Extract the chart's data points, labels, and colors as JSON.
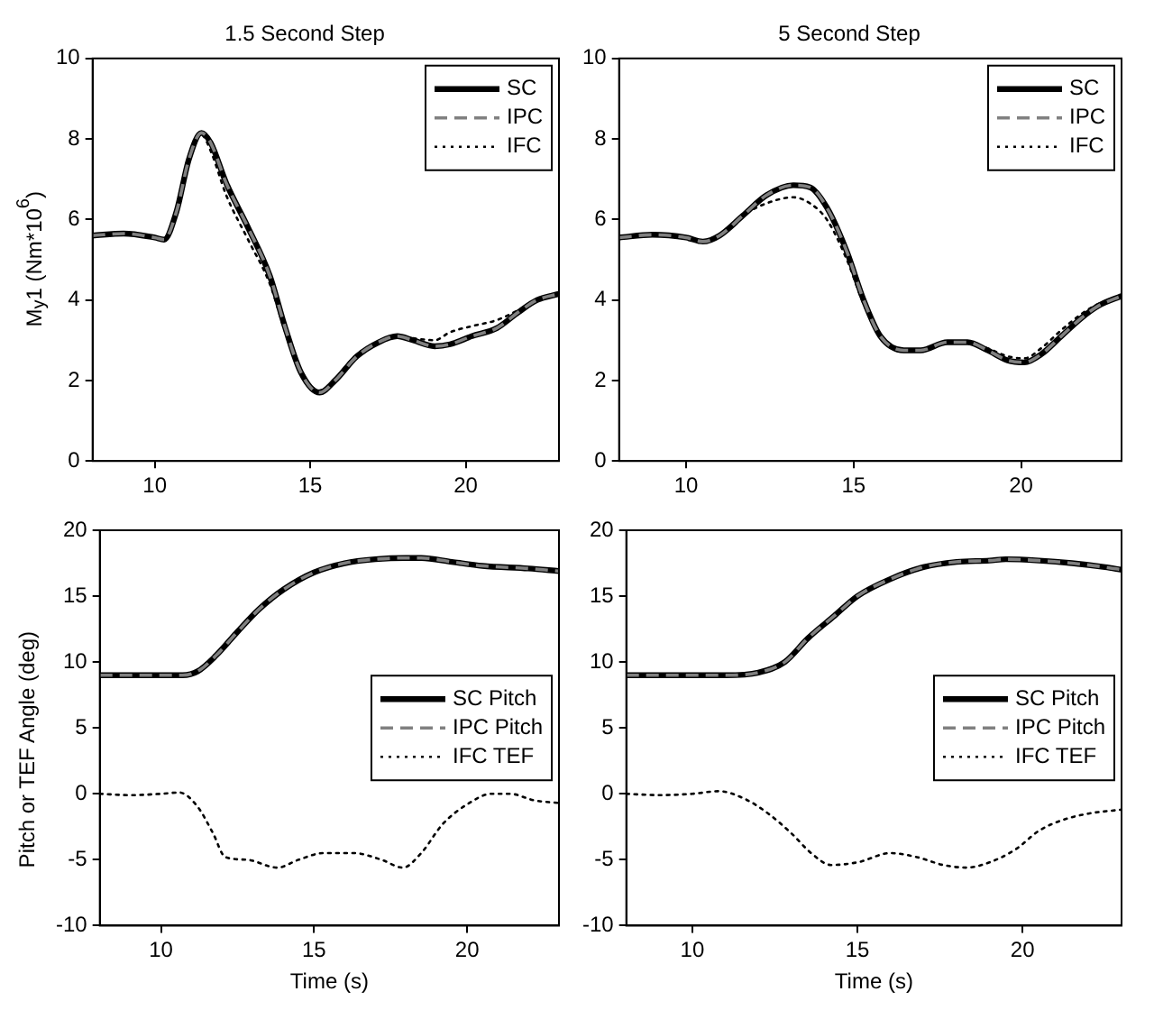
{
  "chart_data": [
    {
      "type": "line",
      "title": "1.5 Second Step",
      "ylabel": "M$_{y}$1 (Nm*10$^{6}$)",
      "xlim": [
        8,
        23
      ],
      "ylim": [
        0,
        10
      ],
      "xticks": [
        10,
        15,
        20
      ],
      "yticks": [
        0,
        2,
        4,
        6,
        8,
        10
      ],
      "grid": false,
      "legend": "top right",
      "marker": "none",
      "series": [
        {
          "name": "SC",
          "color": "#000000",
          "line_style": "solid",
          "x": [
            8,
            9,
            10,
            10.3,
            10.7,
            11.1,
            11.5,
            11.8,
            12.3,
            13,
            13.7,
            14.2,
            14.7,
            15.3,
            15.8,
            16.5,
            17.2,
            17.8,
            18.3,
            19,
            19.5,
            20.2,
            21,
            21.7,
            22.3,
            23
          ],
          "values": [
            5.6,
            5.65,
            5.55,
            5.5,
            6.2,
            7.5,
            8.15,
            7.9,
            6.9,
            5.8,
            4.6,
            3.3,
            2.2,
            1.7,
            2.0,
            2.6,
            2.95,
            3.1,
            3.0,
            2.85,
            2.9,
            3.1,
            3.3,
            3.7,
            4.0,
            4.15
          ]
        },
        {
          "name": "IPC",
          "color": "#808080",
          "line_style": "dashed",
          "x": [
            8,
            9,
            10,
            10.3,
            10.7,
            11.1,
            11.5,
            11.8,
            12.3,
            13,
            13.7,
            14.2,
            14.7,
            15.3,
            15.8,
            16.5,
            17.2,
            17.8,
            18.3,
            19,
            19.5,
            20.2,
            21,
            21.7,
            22.3,
            23
          ],
          "values": [
            5.6,
            5.65,
            5.55,
            5.5,
            6.2,
            7.5,
            8.15,
            7.9,
            6.9,
            5.8,
            4.6,
            3.3,
            2.2,
            1.7,
            2.0,
            2.6,
            2.95,
            3.1,
            3.0,
            2.85,
            2.9,
            3.1,
            3.3,
            3.7,
            4.0,
            4.15
          ]
        },
        {
          "name": "IFC",
          "color": "#000000",
          "line_style": "dotted",
          "x": [
            8,
            9,
            10,
            10.3,
            10.7,
            11.1,
            11.5,
            11.8,
            12.3,
            13,
            13.7,
            14.2,
            14.7,
            15.3,
            15.8,
            16.5,
            17.2,
            17.8,
            18.3,
            19,
            19.5,
            20.2,
            21,
            21.7,
            22.3,
            23
          ],
          "values": [
            5.6,
            5.65,
            5.55,
            5.5,
            6.2,
            7.5,
            8.1,
            7.7,
            6.6,
            5.5,
            4.4,
            3.2,
            2.2,
            1.75,
            2.05,
            2.65,
            2.95,
            3.1,
            3.05,
            3.0,
            3.2,
            3.35,
            3.5,
            3.75,
            4.0,
            4.15
          ]
        }
      ]
    },
    {
      "type": "line",
      "title": "5 Second Step",
      "xlim": [
        8,
        23
      ],
      "ylim": [
        0,
        10
      ],
      "xticks": [
        10,
        15,
        20
      ],
      "yticks": [
        0,
        2,
        4,
        6,
        8,
        10
      ],
      "grid": false,
      "legend": "top right",
      "marker": "none",
      "series": [
        {
          "name": "SC",
          "color": "#000000",
          "line_style": "solid",
          "x": [
            8,
            9,
            10,
            10.5,
            11,
            11.7,
            12.4,
            13.2,
            13.7,
            14.2,
            14.8,
            15.3,
            15.8,
            16.5,
            17,
            17.8,
            18.4,
            19,
            19.6,
            20.1,
            20.6,
            21.2,
            21.8,
            22.3,
            23
          ],
          "values": [
            5.55,
            5.62,
            5.55,
            5.45,
            5.6,
            6.1,
            6.6,
            6.85,
            6.8,
            6.3,
            5.2,
            4.0,
            3.1,
            2.75,
            2.75,
            2.95,
            2.95,
            2.75,
            2.5,
            2.45,
            2.65,
            3.1,
            3.55,
            3.85,
            4.1
          ]
        },
        {
          "name": "IPC",
          "color": "#808080",
          "line_style": "dashed",
          "x": [
            8,
            9,
            10,
            10.5,
            11,
            11.7,
            12.4,
            13.2,
            13.7,
            14.2,
            14.8,
            15.3,
            15.8,
            16.5,
            17,
            17.8,
            18.4,
            19,
            19.6,
            20.1,
            20.6,
            21.2,
            21.8,
            22.3,
            23
          ],
          "values": [
            5.55,
            5.62,
            5.55,
            5.45,
            5.6,
            6.1,
            6.6,
            6.85,
            6.8,
            6.3,
            5.2,
            4.0,
            3.1,
            2.75,
            2.75,
            2.95,
            2.95,
            2.75,
            2.5,
            2.45,
            2.65,
            3.1,
            3.55,
            3.85,
            4.1
          ]
        },
        {
          "name": "IFC",
          "color": "#000000",
          "line_style": "dotted",
          "x": [
            8,
            9,
            10,
            10.5,
            11,
            11.7,
            12.4,
            13.2,
            13.7,
            14.2,
            14.8,
            15.3,
            15.8,
            16.5,
            17,
            17.8,
            18.4,
            19,
            19.6,
            20.1,
            20.6,
            21.2,
            21.8,
            22.3,
            23
          ],
          "values": [
            5.55,
            5.62,
            5.55,
            5.45,
            5.6,
            6.1,
            6.4,
            6.55,
            6.4,
            6.0,
            5.0,
            3.9,
            3.1,
            2.75,
            2.75,
            2.95,
            2.95,
            2.8,
            2.6,
            2.55,
            2.8,
            3.25,
            3.65,
            3.9,
            4.1
          ]
        }
      ]
    },
    {
      "type": "line",
      "xlabel": "Time (s)",
      "ylabel": "Pitch or TEF Angle (deg)",
      "xlim": [
        8,
        23
      ],
      "ylim": [
        -10,
        20
      ],
      "xticks": [
        10,
        15,
        20
      ],
      "yticks": [
        -10,
        -5,
        0,
        5,
        10,
        15,
        20
      ],
      "grid": false,
      "legend": "right",
      "marker": "none",
      "series": [
        {
          "name": "SC Pitch",
          "color": "#000000",
          "line_style": "solid",
          "x": [
            8,
            9,
            10,
            10.7,
            11.2,
            11.8,
            12.5,
            13.2,
            14,
            15,
            16,
            17,
            18,
            18.5,
            19.5,
            20.5,
            22,
            23
          ],
          "values": [
            9.0,
            9.0,
            9.0,
            9.0,
            9.3,
            10.5,
            12.3,
            14.0,
            15.5,
            16.8,
            17.5,
            17.8,
            17.9,
            17.9,
            17.6,
            17.3,
            17.1,
            16.9
          ]
        },
        {
          "name": "IPC Pitch",
          "color": "#808080",
          "line_style": "dashed",
          "x": [
            8,
            9,
            10,
            10.7,
            11.2,
            11.8,
            12.5,
            13.2,
            14,
            15,
            16,
            17,
            18,
            18.5,
            19.5,
            20.5,
            22,
            23
          ],
          "values": [
            9.0,
            9.0,
            9.0,
            9.0,
            9.3,
            10.5,
            12.3,
            14.0,
            15.5,
            16.8,
            17.5,
            17.8,
            17.9,
            17.9,
            17.6,
            17.3,
            17.1,
            16.9
          ]
        },
        {
          "name": "IFC TEF",
          "color": "#000000",
          "line_style": "dotted",
          "x": [
            8,
            9,
            10,
            10.6,
            11.2,
            11.7,
            12.1,
            12.8,
            13.8,
            14.5,
            15.3,
            16.3,
            17.2,
            17.9,
            18.5,
            19.2,
            20,
            20.8,
            21.4,
            22.2,
            23
          ],
          "values": [
            0,
            -0.1,
            0,
            0.1,
            -1.0,
            -3.0,
            -4.8,
            -5.0,
            -5.6,
            -5.0,
            -4.5,
            -4.5,
            -5.0,
            -5.6,
            -4.5,
            -2.3,
            -0.8,
            0,
            0,
            -0.5,
            -0.7
          ]
        }
      ]
    },
    {
      "type": "line",
      "xlabel": "Time (s)",
      "xlim": [
        8,
        23
      ],
      "ylim": [
        -10,
        20
      ],
      "xticks": [
        10,
        15,
        20
      ],
      "yticks": [
        -10,
        -5,
        0,
        5,
        10,
        15,
        20
      ],
      "grid": false,
      "legend": "right",
      "marker": "none",
      "series": [
        {
          "name": "SC Pitch",
          "color": "#000000",
          "line_style": "solid",
          "x": [
            8,
            10,
            11,
            12,
            12.8,
            13.5,
            14.3,
            15,
            16,
            17,
            18,
            19,
            19.5,
            20.5,
            21.5,
            22.5,
            23
          ],
          "values": [
            9.0,
            9.0,
            9.0,
            9.2,
            10.0,
            11.8,
            13.5,
            15.0,
            16.3,
            17.2,
            17.6,
            17.7,
            17.8,
            17.7,
            17.5,
            17.2,
            17.0
          ]
        },
        {
          "name": "IPC Pitch",
          "color": "#808080",
          "line_style": "dashed",
          "x": [
            8,
            10,
            11,
            12,
            12.8,
            13.5,
            14.3,
            15,
            16,
            17,
            18,
            19,
            19.5,
            20.5,
            21.5,
            22.5,
            23
          ],
          "values": [
            9.0,
            9.0,
            9.0,
            9.2,
            10.0,
            11.8,
            13.5,
            15.0,
            16.3,
            17.2,
            17.6,
            17.7,
            17.8,
            17.7,
            17.5,
            17.2,
            17.0
          ]
        },
        {
          "name": "IFC TEF",
          "color": "#000000",
          "line_style": "dotted",
          "x": [
            8,
            9,
            10,
            10.8,
            11.6,
            12.3,
            13,
            13.6,
            14.2,
            15,
            16,
            16.8,
            17.6,
            18.3,
            19,
            19.8,
            20.5,
            21.2,
            22,
            23
          ],
          "values": [
            0,
            -0.1,
            0,
            0.2,
            -0.4,
            -1.5,
            -3.0,
            -4.5,
            -5.4,
            -5.2,
            -4.5,
            -4.8,
            -5.4,
            -5.6,
            -5.2,
            -4.2,
            -2.8,
            -2.0,
            -1.5,
            -1.2
          ]
        }
      ]
    }
  ]
}
